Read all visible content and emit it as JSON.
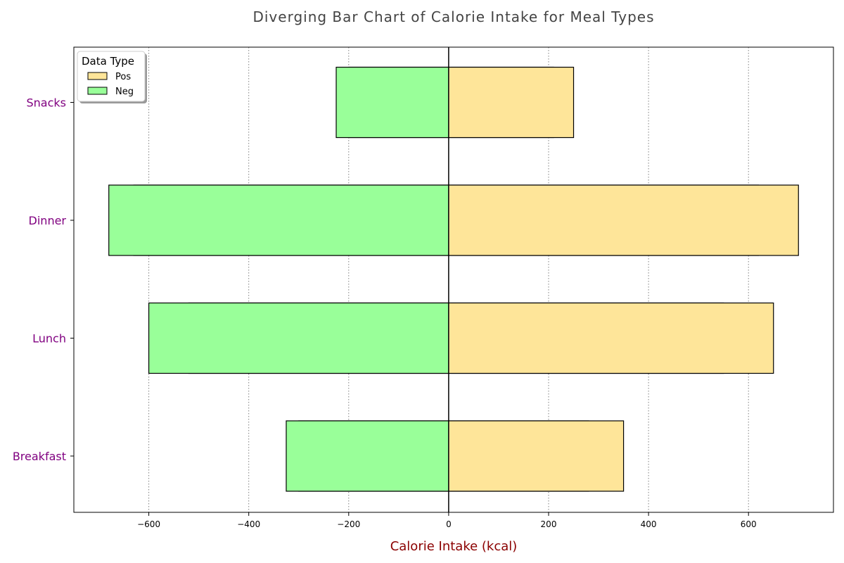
{
  "chart_data": {
    "type": "bar",
    "orientation": "horizontal",
    "title": "Diverging Bar Chart of Calorie Intake for Meal Types",
    "xlabel": "Calorie Intake (kcal)",
    "ylabel": "",
    "xlim": [
      -750,
      770
    ],
    "xticks": [
      -600,
      -400,
      -200,
      0,
      200,
      400,
      600
    ],
    "xtick_labels": [
      "−600",
      "−400",
      "−200",
      "0",
      "200",
      "400",
      "600"
    ],
    "categories": [
      "Breakfast",
      "Lunch",
      "Dinner",
      "Snacks"
    ],
    "series": [
      {
        "name": "Pos",
        "color": "#fee599",
        "values": [
          280,
          550,
          620,
          210
        ]
      },
      {
        "name": "Pos",
        "color": "#fee599",
        "values": [
          350,
          650,
          700,
          250
        ]
      },
      {
        "name": "Neg",
        "color": "#99ff99",
        "values": [
          -300,
          -520,
          -630,
          -200
        ]
      },
      {
        "name": "Neg",
        "color": "#99ff99",
        "values": [
          -325,
          -600,
          -680,
          -225
        ]
      }
    ],
    "legend": {
      "title": "Data Type",
      "position": "top-left",
      "entries": [
        {
          "label": "Pos",
          "color": "#fee599"
        },
        {
          "label": "Neg",
          "color": "#99ff99"
        }
      ]
    },
    "grid": {
      "x": true,
      "y": false,
      "style": "dotted"
    },
    "colors": {
      "category_labels": "#800080",
      "axis_title": "#8b0000",
      "grid": "#808080",
      "bar_edge": "#000000"
    }
  }
}
